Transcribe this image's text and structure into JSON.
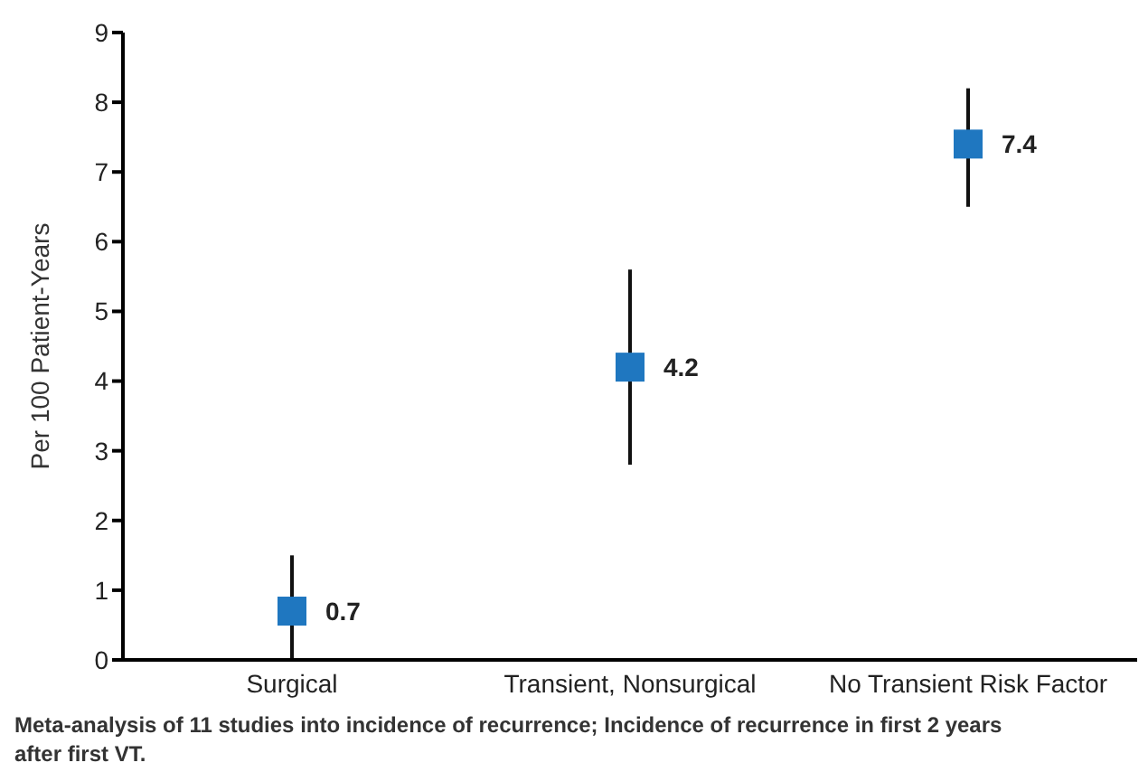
{
  "chart_data": {
    "type": "scatter",
    "categories": [
      "Surgical",
      "Transient, Nonsurgical",
      "No Transient Risk Factor"
    ],
    "ylabel": "Per 100 Patient-Years",
    "series": [
      {
        "color": "#1f77c0",
        "values": [
          0.7,
          4.2,
          7.4
        ],
        "errors": [
          [
            0,
            1.5
          ],
          [
            2.8,
            5.6
          ],
          [
            6.5,
            8.2
          ]
        ]
      }
    ],
    "ylim": [
      0,
      9
    ],
    "yticks": [
      0,
      1,
      2,
      3,
      4,
      5,
      6,
      7,
      8,
      9
    ],
    "grid": false,
    "legend": false,
    "marker": "square",
    "data_labels": true,
    "annotations": [
      "Meta-analysis of 11 studies into incidence of recurrence; Incidence of recurrence in first 2 years after first VT."
    ]
  }
}
